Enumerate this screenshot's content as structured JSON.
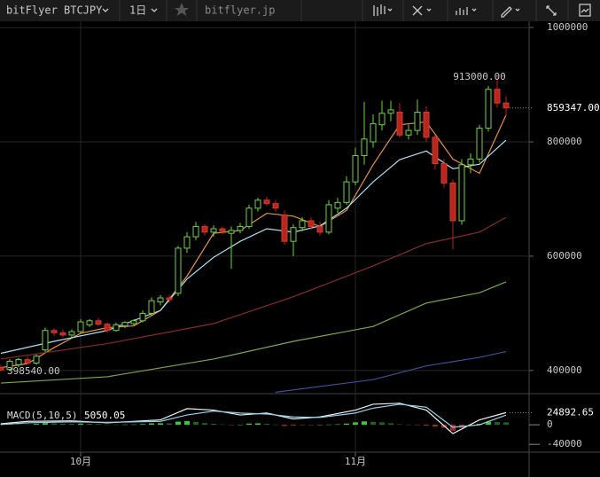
{
  "toolbar": {
    "symbol": "bitFlyer BTCJPY",
    "interval": "1日",
    "source": "bitflyer.jp"
  },
  "chart_data": [
    {
      "type": "candlestick",
      "categories": [
        null,
        null,
        null,
        null,
        null,
        null,
        null,
        null,
        null,
        "10月",
        null,
        null,
        null,
        null,
        null,
        null,
        null,
        null,
        null,
        null,
        null,
        null,
        null,
        null,
        null,
        null,
        null,
        null,
        null,
        null,
        null,
        null,
        null,
        null,
        null,
        null,
        null,
        null,
        null,
        null,
        "11月",
        null,
        null,
        null,
        null,
        null,
        null,
        null,
        null,
        null,
        null,
        null,
        null,
        null,
        null,
        null,
        null,
        null
      ],
      "open": [
        405000,
        402000,
        410000,
        419000,
        413000,
        436000,
        470000,
        466000,
        462000,
        468000,
        480000,
        487000,
        481000,
        470000,
        478000,
        482000,
        487000,
        500000,
        520000,
        527000,
        535000,
        614000,
        634000,
        652000,
        642000,
        648000,
        640000,
        645000,
        652000,
        684000,
        698000,
        692000,
        672000,
        626000,
        650000,
        662000,
        652000,
        642000,
        684000,
        694000,
        730000,
        776000,
        800000,
        830000,
        850000,
        852000,
        812000,
        820000,
        852000,
        808000,
        762000,
        728000,
        662000,
        760000,
        770000,
        824000,
        892000,
        868000
      ],
      "high": [
        410000,
        420000,
        422000,
        425000,
        428000,
        475000,
        474000,
        472000,
        472000,
        490000,
        490000,
        492000,
        484000,
        484000,
        486000,
        490000,
        505000,
        528000,
        532000,
        532000,
        618000,
        642000,
        660000,
        656000,
        654000,
        652000,
        652000,
        658000,
        690000,
        702000,
        704000,
        698000,
        680000,
        656000,
        668000,
        668000,
        660000,
        698000,
        702000,
        740000,
        790000,
        870000,
        848000,
        872000,
        872000,
        868000,
        830000,
        874000,
        862000,
        812000,
        770000,
        734000,
        770000,
        780000,
        830000,
        898000,
        913000,
        880000
      ],
      "low": [
        398540,
        400000,
        406000,
        410000,
        410000,
        432000,
        460000,
        458000,
        458000,
        465000,
        476000,
        478000,
        466000,
        468000,
        474000,
        478000,
        484000,
        496000,
        514000,
        518000,
        530000,
        606000,
        628000,
        636000,
        634000,
        638000,
        578000,
        640000,
        648000,
        678000,
        688000,
        678000,
        620000,
        600000,
        644000,
        646000,
        636000,
        638000,
        676000,
        690000,
        724000,
        760000,
        790000,
        820000,
        836000,
        808000,
        804000,
        812000,
        800000,
        752000,
        720000,
        612000,
        655000,
        745000,
        764000,
        818000,
        860000,
        845000
      ],
      "close": [
        401000,
        416000,
        419000,
        413000,
        425000,
        470000,
        466000,
        462000,
        468000,
        485000,
        487000,
        481000,
        470000,
        480000,
        484000,
        487000,
        500000,
        522000,
        527000,
        524000,
        614000,
        634000,
        652000,
        642000,
        648000,
        644000,
        645000,
        652000,
        684000,
        698000,
        692000,
        684000,
        626000,
        650000,
        662000,
        652000,
        642000,
        690000,
        694000,
        730000,
        776000,
        805000,
        832000,
        850000,
        856000,
        812000,
        820000,
        852000,
        808000,
        762000,
        728000,
        662000,
        760000,
        770000,
        824000,
        892000,
        868000,
        859347
      ],
      "up_color": "#6fd43c",
      "down_color": "#b8261e",
      "lines": [
        {
          "color": "#e8913a",
          "x": [
            0,
            3,
            6,
            9,
            12,
            15,
            18,
            21,
            24,
            27,
            30,
            33,
            36,
            39,
            42,
            45,
            48,
            51,
            54,
            57
          ],
          "values": [
            405000,
            412000,
            440000,
            465000,
            475000,
            478000,
            505000,
            565000,
            640000,
            645000,
            675000,
            670000,
            652000,
            680000,
            760000,
            830000,
            835000,
            770000,
            745000,
            847000
          ]
        },
        {
          "color": "#a8e0f0",
          "x": [
            0,
            6,
            12,
            18,
            21,
            24,
            27,
            30,
            33,
            36,
            39,
            42,
            45,
            48,
            51,
            54,
            57
          ],
          "values": [
            430000,
            451000,
            470000,
            505000,
            560000,
            598000,
            626000,
            648000,
            642000,
            653000,
            684000,
            730000,
            769000,
            784000,
            753000,
            761000,
            803000
          ]
        },
        {
          "color": "#8b2a2a",
          "x": [
            0,
            12,
            24,
            33,
            42,
            48,
            54,
            57
          ],
          "values": [
            420000,
            447000,
            482000,
            529000,
            583000,
            622000,
            642000,
            668000
          ]
        },
        {
          "color": "#7da84a",
          "x": [
            0,
            12,
            24,
            33,
            42,
            48,
            54,
            57
          ],
          "values": [
            378000,
            389000,
            420000,
            451000,
            477000,
            518000,
            536000,
            555000
          ]
        },
        {
          "color": "#3f4f9a",
          "x": [
            31,
            42,
            48,
            54,
            57
          ],
          "values": [
            362000,
            384000,
            408000,
            423000,
            433000
          ]
        }
      ],
      "annotations": [
        {
          "value": 913000,
          "label": "913000.00"
        },
        {
          "value": 398540,
          "label": "398540.00"
        },
        {
          "value": 859347,
          "label": "859347.00"
        }
      ],
      "ylim": [
        361000,
        1011000
      ],
      "yticks": [
        400000,
        600000,
        800000,
        1000000
      ],
      "grid": true
    },
    {
      "type": "macd",
      "title": "MACD(5,10,5)",
      "series": [
        {
          "type": "bar",
          "color": "#3cc43c",
          "negative_color": "#a52a2a",
          "values": [
            1500,
            1200,
            1000,
            800,
            1800,
            3500,
            3000,
            2200,
            2000,
            2500,
            2300,
            1500,
            500,
            400,
            600,
            800,
            1500,
            3000,
            3200,
            2800,
            6500,
            7500,
            6000,
            3500,
            2000,
            800,
            -500,
            300,
            2500,
            3000,
            2000,
            500,
            -2500,
            -1800,
            -500,
            -800,
            -1500,
            500,
            1000,
            2500,
            5000,
            7000,
            6000,
            5000,
            3000,
            1000,
            500,
            -500,
            -2000,
            -3500,
            -6000,
            -12000,
            -6000,
            -1000,
            2000,
            6000,
            5500,
            5050.05
          ]
        },
        {
          "type": "line",
          "color": "#f0f0f0",
          "x": [
            0,
            3,
            8,
            12,
            18,
            21,
            24,
            27,
            30,
            33,
            36,
            40,
            42,
            45,
            48,
            51,
            54,
            57
          ],
          "values": [
            2000,
            7000,
            8000,
            4000,
            10000,
            33000,
            30000,
            20000,
            24000,
            12000,
            16000,
            30000,
            42000,
            44000,
            30000,
            -18000,
            10000,
            24892.65
          ]
        },
        {
          "type": "line",
          "color": "#8fd0e8",
          "x": [
            0,
            3,
            8,
            12,
            18,
            21,
            24,
            27,
            30,
            33,
            36,
            40,
            42,
            45,
            48,
            51,
            54,
            57
          ],
          "values": [
            500,
            4000,
            6000,
            5000,
            7000,
            20000,
            28000,
            24000,
            22000,
            16000,
            15000,
            24000,
            34000,
            42000,
            36000,
            -5000,
            0,
            19842.6
          ]
        }
      ],
      "ylim": [
        -56000,
        60000
      ],
      "yticks": [
        -40000,
        0
      ]
    }
  ]
}
